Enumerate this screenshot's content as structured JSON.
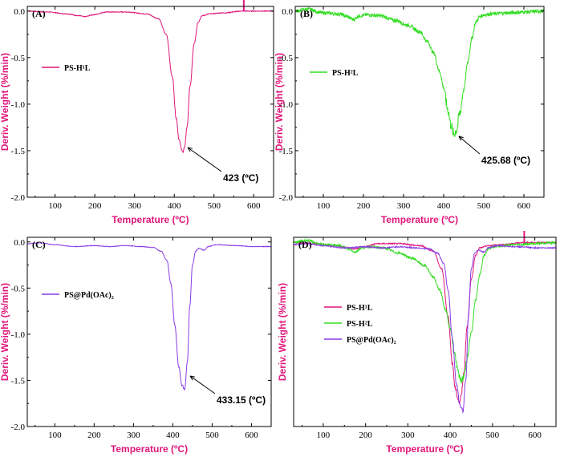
{
  "chart_data": [
    {
      "panel": "(A)",
      "type": "line",
      "xlabel": "Temperature (ºC)",
      "ylabel": "Deriv. Weight (%/min)",
      "xlim": [
        30,
        650
      ],
      "ylim": [
        -2.0,
        0.05
      ],
      "xticks": [
        100,
        200,
        300,
        400,
        500,
        600
      ],
      "yticks": [
        0.0,
        -0.5,
        -1.0,
        -1.5,
        -2.0
      ],
      "grid": false,
      "legend_position": "upper-left",
      "series": [
        {
          "name": "PS-H¹L",
          "color": "#e0157a",
          "x": [
            30,
            80,
            130,
            160,
            175,
            195,
            230,
            280,
            330,
            360,
            380,
            395,
            405,
            412,
            418,
            422,
            426,
            432,
            440,
            450,
            460,
            470,
            490,
            520,
            575,
            600,
            650
          ],
          "y": [
            0.0,
            -0.01,
            -0.03,
            -0.05,
            -0.06,
            -0.04,
            -0.01,
            -0.01,
            -0.03,
            -0.08,
            -0.25,
            -0.7,
            -1.15,
            -1.38,
            -1.48,
            -1.52,
            -1.46,
            -1.25,
            -0.8,
            -0.35,
            -0.12,
            -0.05,
            -0.03,
            -0.02,
            0.0,
            0.0,
            0.0
          ],
          "spikes": [
            {
              "x": 575,
              "y": 0.2
            }
          ]
        }
      ],
      "annotation": {
        "text": "423 (ºC)",
        "x": 423,
        "y": -1.5
      }
    },
    {
      "panel": "(B)",
      "type": "line",
      "xlabel": "Temperature (ºC)",
      "ylabel": "Deriv. Weight (%/min)",
      "xlim": [
        30,
        650
      ],
      "ylim": [
        -2.0,
        0.05
      ],
      "xticks": [
        100,
        200,
        300,
        400,
        500,
        600
      ],
      "yticks": [
        0.0,
        -0.5,
        -1.0,
        -1.5,
        -2.0
      ],
      "grid": false,
      "legend_position": "upper-left",
      "series": [
        {
          "name": "PS-H²L",
          "color": "#33dd22",
          "x": [
            30,
            60,
            100,
            140,
            160,
            175,
            190,
            210,
            240,
            280,
            310,
            340,
            360,
            375,
            390,
            400,
            410,
            418,
            425,
            432,
            440,
            450,
            460,
            470,
            480,
            490,
            500,
            520,
            560,
            600,
            650
          ],
          "y": [
            0.0,
            0.02,
            -0.02,
            -0.03,
            -0.06,
            -0.09,
            -0.05,
            -0.04,
            -0.05,
            -0.1,
            -0.15,
            -0.22,
            -0.33,
            -0.45,
            -0.65,
            -0.82,
            -1.05,
            -1.22,
            -1.32,
            -1.28,
            -1.1,
            -0.85,
            -0.55,
            -0.3,
            -0.12,
            -0.06,
            -0.04,
            -0.03,
            -0.02,
            -0.01,
            0.0
          ]
        }
      ],
      "annotation": {
        "text": "425.68 (ºC)",
        "x": 425.68,
        "y": -1.32
      }
    },
    {
      "panel": "(C)",
      "type": "line",
      "xlabel": "Temperature (ºC)",
      "ylabel": "Deriv. Weight (%/min)",
      "xlim": [
        30,
        650
      ],
      "ylim": [
        -2.0,
        0.05
      ],
      "xticks": [
        100,
        200,
        300,
        400,
        500,
        600
      ],
      "yticks": [
        0.0,
        -0.5,
        -1.0,
        -1.5,
        -2.0
      ],
      "grid": false,
      "legend_position": "upper-left",
      "series": [
        {
          "name": "PS@Pd(OAc)₂",
          "color": "#8a3ce6",
          "x": [
            30,
            60,
            100,
            150,
            200,
            240,
            280,
            320,
            350,
            370,
            385,
            395,
            405,
            415,
            423,
            430,
            437,
            443,
            450,
            458,
            466,
            480,
            490,
            510,
            560,
            600,
            650
          ],
          "y": [
            -0.02,
            -0.01,
            -0.03,
            -0.05,
            -0.04,
            -0.05,
            -0.04,
            -0.05,
            -0.06,
            -0.1,
            -0.2,
            -0.45,
            -0.9,
            -1.35,
            -1.55,
            -1.6,
            -1.3,
            -0.7,
            -0.25,
            -0.1,
            -0.07,
            -0.09,
            -0.05,
            -0.03,
            -0.04,
            -0.05,
            -0.05
          ]
        }
      ],
      "annotation": {
        "text": "433.15 (ºC)",
        "x": 433.15,
        "y": -1.55
      }
    },
    {
      "panel": "(D)",
      "type": "line",
      "xlabel": "Temperature (ºC)",
      "ylabel": "Deriv. Weight (%/min)",
      "xlim": [
        30,
        650
      ],
      "ylim": [
        -1.75,
        0.05
      ],
      "xticks": [
        100,
        200,
        300,
        400,
        500,
        600
      ],
      "grid": false,
      "legend_position": "middle-left",
      "series": [
        {
          "name": "PS-H¹L",
          "color": "#e0157a",
          "x": [
            30,
            80,
            130,
            160,
            175,
            195,
            230,
            280,
            330,
            360,
            380,
            395,
            405,
            412,
            418,
            422,
            426,
            432,
            440,
            450,
            460,
            470,
            490,
            520,
            575,
            600,
            650
          ],
          "y": [
            0.0,
            -0.01,
            -0.03,
            -0.05,
            -0.06,
            -0.04,
            -0.01,
            -0.01,
            -0.03,
            -0.08,
            -0.25,
            -0.7,
            -1.15,
            -1.38,
            -1.48,
            -1.52,
            -1.46,
            -1.25,
            -0.8,
            -0.35,
            -0.12,
            -0.05,
            -0.03,
            -0.02,
            0.0,
            0.0,
            0.0
          ],
          "spikes": [
            {
              "x": 575,
              "y": 0.2
            }
          ]
        },
        {
          "name": "PS-H²L",
          "color": "#33dd22",
          "x": [
            30,
            60,
            100,
            140,
            160,
            175,
            190,
            210,
            240,
            280,
            310,
            340,
            360,
            375,
            390,
            400,
            410,
            418,
            425,
            432,
            440,
            450,
            460,
            470,
            480,
            490,
            500,
            520,
            560,
            600,
            650
          ],
          "y": [
            0.0,
            0.02,
            -0.02,
            -0.03,
            -0.06,
            -0.09,
            -0.05,
            -0.04,
            -0.05,
            -0.1,
            -0.15,
            -0.22,
            -0.33,
            -0.45,
            -0.65,
            -0.82,
            -1.05,
            -1.22,
            -1.32,
            -1.28,
            -1.1,
            -0.85,
            -0.55,
            -0.3,
            -0.12,
            -0.06,
            -0.04,
            -0.03,
            -0.02,
            -0.01,
            0.0
          ]
        },
        {
          "name": "PS@Pd(OAc)₂",
          "color": "#8a3ce6",
          "x": [
            30,
            60,
            100,
            150,
            200,
            240,
            280,
            320,
            350,
            370,
            385,
            395,
            405,
            415,
            423,
            430,
            437,
            443,
            450,
            458,
            466,
            480,
            490,
            510,
            560,
            600,
            650
          ],
          "y": [
            -0.02,
            -0.01,
            -0.03,
            -0.05,
            -0.04,
            -0.05,
            -0.04,
            -0.05,
            -0.06,
            -0.1,
            -0.2,
            -0.45,
            -0.9,
            -1.35,
            -1.55,
            -1.6,
            -1.3,
            -0.7,
            -0.25,
            -0.1,
            -0.07,
            -0.09,
            -0.05,
            -0.03,
            -0.04,
            -0.05,
            -0.05
          ]
        }
      ]
    }
  ]
}
